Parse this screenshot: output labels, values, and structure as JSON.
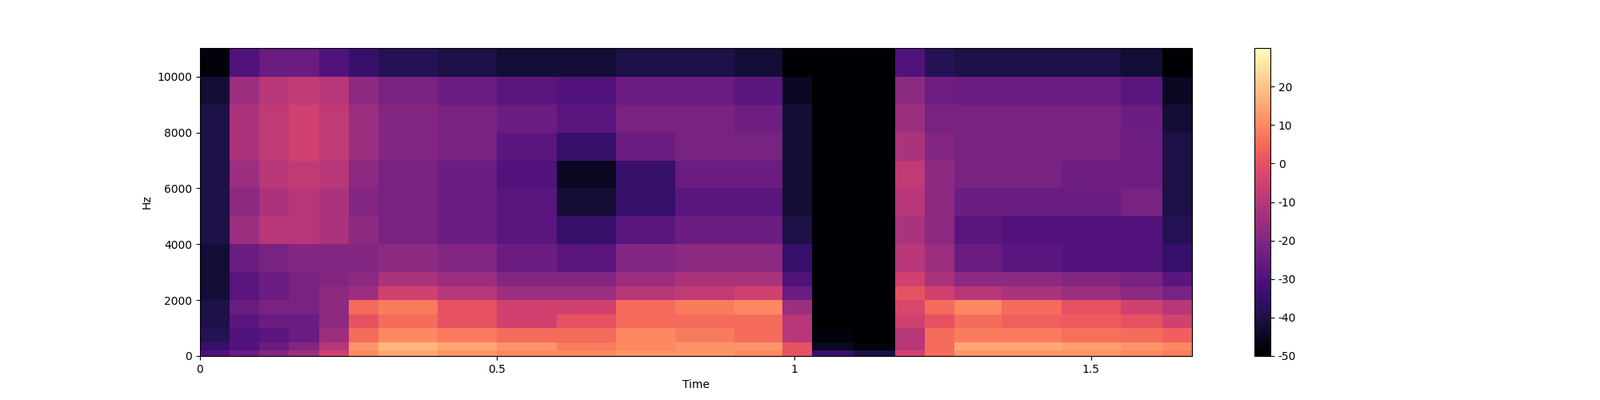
{
  "chart_data": {
    "type": "heatmap",
    "x_label": "Time",
    "y_label": "Hz",
    "xlim": [
      0,
      1.67
    ],
    "xticks": [
      0,
      0.5,
      1,
      1.5
    ],
    "ylim": [
      0,
      11025
    ],
    "yticks": [
      0,
      2000,
      4000,
      6000,
      8000,
      10000
    ],
    "x_edges": [
      0,
      0.05,
      0.1,
      0.15,
      0.2,
      0.25,
      0.3,
      0.4,
      0.5,
      0.6,
      0.7,
      0.8,
      0.9,
      0.98,
      1.03,
      1.1,
      1.17,
      1.22,
      1.27,
      1.35,
      1.45,
      1.55,
      1.62,
      1.67
    ],
    "y_edges": [
      0,
      200,
      500,
      1000,
      1500,
      2000,
      2500,
      3000,
      4000,
      5000,
      6000,
      7000,
      8000,
      9000,
      10000,
      11025
    ],
    "cells": [
      [
        -30,
        -25,
        -20,
        -15,
        -5,
        10,
        15,
        12,
        10,
        10,
        12,
        12,
        10,
        0,
        -35,
        -40,
        -5,
        5,
        12,
        12,
        12,
        10,
        8
      ],
      [
        -35,
        -30,
        -25,
        -20,
        -10,
        12,
        18,
        15,
        12,
        8,
        10,
        12,
        12,
        0,
        -45,
        -48,
        -10,
        5,
        15,
        15,
        14,
        12,
        10
      ],
      [
        -38,
        -30,
        -28,
        -25,
        -15,
        5,
        10,
        8,
        5,
        5,
        10,
        8,
        5,
        -10,
        -48,
        -50,
        -10,
        5,
        8,
        8,
        6,
        5,
        3
      ],
      [
        -40,
        -28,
        -25,
        -25,
        -18,
        0,
        5,
        0,
        -5,
        0,
        5,
        5,
        5,
        -10,
        -50,
        -50,
        -5,
        0,
        5,
        3,
        2,
        0,
        -5
      ],
      [
        -40,
        -25,
        -22,
        -22,
        -18,
        5,
        8,
        0,
        -5,
        -5,
        5,
        8,
        10,
        -15,
        -50,
        -50,
        -3,
        5,
        10,
        5,
        0,
        -5,
        -10
      ],
      [
        -42,
        -28,
        -25,
        -22,
        -18,
        -15,
        -5,
        -10,
        -15,
        -15,
        -10,
        -8,
        -5,
        -25,
        -50,
        -50,
        0,
        -5,
        -10,
        -12,
        -15,
        -18,
        -22
      ],
      [
        -42,
        -28,
        -25,
        -22,
        -20,
        -18,
        -12,
        -15,
        -20,
        -20,
        -15,
        -12,
        -12,
        -30,
        -50,
        -50,
        -5,
        -12,
        -18,
        -18,
        -20,
        -22,
        -28
      ],
      [
        -42,
        -25,
        -22,
        -20,
        -20,
        -20,
        -18,
        -20,
        -25,
        -28,
        -20,
        -18,
        -18,
        -35,
        -50,
        -50,
        -10,
        -15,
        -25,
        -28,
        -30,
        -30,
        -35
      ],
      [
        -40,
        -15,
        -10,
        -10,
        -12,
        -18,
        -22,
        -25,
        -28,
        -35,
        -28,
        -25,
        -25,
        -40,
        -50,
        -50,
        -12,
        -18,
        -28,
        -30,
        -30,
        -30,
        -38
      ],
      [
        -40,
        -18,
        -12,
        -10,
        -12,
        -20,
        -22,
        -25,
        -28,
        -42,
        -35,
        -28,
        -28,
        -42,
        -50,
        -50,
        -10,
        -18,
        -25,
        -25,
        -25,
        -22,
        -40
      ],
      [
        -40,
        -15,
        -10,
        -8,
        -10,
        -18,
        -22,
        -25,
        -30,
        -45,
        -35,
        -25,
        -25,
        -42,
        -50,
        -50,
        -8,
        -18,
        -22,
        -22,
        -24,
        -24,
        -40
      ],
      [
        -40,
        -12,
        -8,
        -5,
        -8,
        -15,
        -20,
        -22,
        -28,
        -35,
        -25,
        -22,
        -22,
        -42,
        -50,
        -50,
        -12,
        -20,
        -22,
        -22,
        -22,
        -24,
        -40
      ],
      [
        -40,
        -12,
        -8,
        -5,
        -8,
        -15,
        -20,
        -22,
        -25,
        -28,
        -22,
        -22,
        -24,
        -42,
        -50,
        -50,
        -15,
        -22,
        -22,
        -22,
        -22,
        -25,
        -42
      ],
      [
        -42,
        -15,
        -10,
        -8,
        -10,
        -18,
        -22,
        -25,
        -28,
        -30,
        -25,
        -25,
        -28,
        -45,
        -50,
        -50,
        -18,
        -24,
        -25,
        -25,
        -25,
        -28,
        -45
      ],
      [
        -48,
        -30,
        -25,
        -25,
        -30,
        -35,
        -38,
        -40,
        -42,
        -42,
        -40,
        -40,
        -42,
        -50,
        -50,
        -50,
        -30,
        -38,
        -40,
        -40,
        -40,
        -42,
        -50
      ]
    ],
    "colorbar_range": [
      -50,
      30
    ],
    "colorbar_ticks": [
      -50,
      -40,
      -30,
      -20,
      -10,
      0,
      10,
      20
    ]
  }
}
